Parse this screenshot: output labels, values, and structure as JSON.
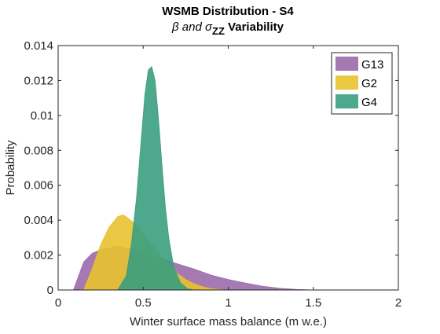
{
  "chart_data": {
    "type": "area",
    "title_line1": "WSMB Distribution - S4",
    "title_line2_prefix": "β and ",
    "title_line2_sigma": "σ",
    "title_line2_sub": "ZZ",
    "title_line2_suffix": " Variability",
    "xlabel": "Winter surface mass balance (m w.e.)",
    "ylabel": "Probability",
    "xlim": [
      0,
      2
    ],
    "ylim": [
      0,
      0.014
    ],
    "xticks": [
      0,
      0.5,
      1,
      1.5,
      2
    ],
    "xtick_labels": [
      "0",
      "0.5",
      "1",
      "1.5",
      "2"
    ],
    "yticks": [
      0,
      0.002,
      0.004,
      0.006,
      0.008,
      0.01,
      0.012,
      0.014
    ],
    "ytick_labels": [
      "0",
      "0.002",
      "0.004",
      "0.006",
      "0.008",
      "0.01",
      "0.012",
      "0.014"
    ],
    "legend_position": "top-right",
    "grid": false,
    "series": [
      {
        "name": "G13",
        "color": "#9b6aa8",
        "x": [
          0.09,
          0.12,
          0.15,
          0.2,
          0.25,
          0.3,
          0.35,
          0.4,
          0.45,
          0.5,
          0.6,
          0.7,
          0.8,
          0.9,
          1.0,
          1.1,
          1.2,
          1.3,
          1.4,
          1.5
        ],
        "y": [
          0,
          0.0008,
          0.0016,
          0.0021,
          0.0023,
          0.0024,
          0.0025,
          0.0024,
          0.0023,
          0.0021,
          0.0018,
          0.0015,
          0.0012,
          0.00085,
          0.0006,
          0.0004,
          0.00022,
          0.0001,
          3e-05,
          0
        ]
      },
      {
        "name": "G2",
        "color": "#e8c22f",
        "x": [
          0.15,
          0.2,
          0.25,
          0.3,
          0.35,
          0.38,
          0.4,
          0.45,
          0.5,
          0.55,
          0.6,
          0.65,
          0.7,
          0.75,
          0.8,
          0.85,
          0.9,
          0.95,
          1.0
        ],
        "y": [
          0,
          0.0012,
          0.0026,
          0.0036,
          0.0042,
          0.0043,
          0.0042,
          0.0038,
          0.0032,
          0.0026,
          0.002,
          0.0014,
          0.00095,
          0.0006,
          0.00035,
          0.00018,
          8e-05,
          2e-05,
          0
        ]
      },
      {
        "name": "G4",
        "color": "#3a9e80",
        "x": [
          0.35,
          0.4,
          0.43,
          0.46,
          0.49,
          0.51,
          0.53,
          0.55,
          0.57,
          0.59,
          0.61,
          0.63,
          0.65,
          0.68,
          0.72,
          0.76,
          0.8
        ],
        "y": [
          0,
          0.0008,
          0.0026,
          0.0052,
          0.0088,
          0.0112,
          0.0126,
          0.0128,
          0.012,
          0.0098,
          0.0072,
          0.0048,
          0.003,
          0.0013,
          0.0004,
          8e-05,
          0
        ]
      }
    ]
  }
}
